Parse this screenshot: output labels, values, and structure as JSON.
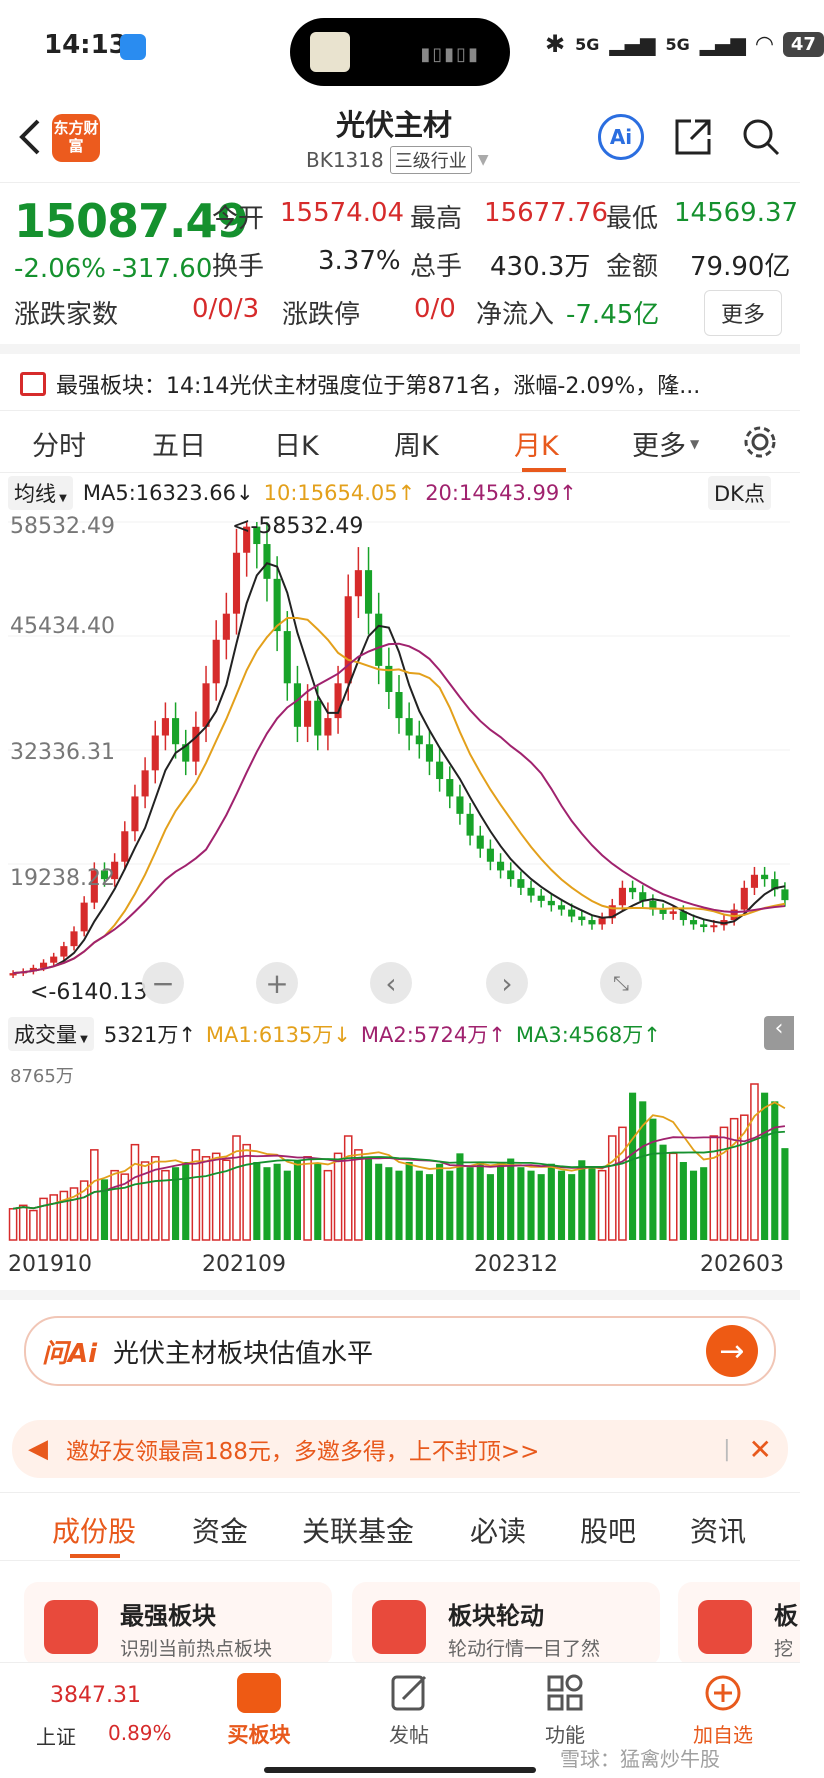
{
  "status_bar": {
    "time": "14:13",
    "network": "5G",
    "battery": "47"
  },
  "header": {
    "logo_text": "东方财富",
    "title": "光伏主材",
    "code": "BK1318",
    "category": "三级行业"
  },
  "quote": {
    "price": "15087.49",
    "change_pct": "-2.06%",
    "change_abs": "-317.60",
    "open_label": "今开",
    "open": "15574.04",
    "high_label": "最高",
    "high": "15677.76",
    "low_label": "最低",
    "low": "14569.37",
    "turnover_label": "换手",
    "turnover": "3.37%",
    "volume_label": "总手",
    "volume": "430.3万",
    "amount_label": "金额",
    "amount": "79.90亿",
    "updown_label": "涨跌家数",
    "updown": "0/0/3",
    "limit_label": "涨跌停",
    "limit": "0/0",
    "inflow_label": "净流入",
    "inflow": "-7.45亿",
    "more": "更多"
  },
  "notice": "最强板块：14:14光伏主材强度位于第871名，涨幅-2.09%，隆...",
  "tabs": {
    "t1": "分时",
    "t2": "五日",
    "t3": "日K",
    "t4": "周K",
    "t5": "月K",
    "t6": "更多",
    "active": "月K"
  },
  "indicators": {
    "type": "均线",
    "ma5": "MA5:16323.66↓",
    "ma10": "10:15654.05↑",
    "ma20": "20:14543.99↑",
    "dk": "DK点",
    "colors": {
      "ma5": "#222222",
      "ma10": "#e3a01b",
      "ma20": "#a0226e",
      "up": "#d62b2b",
      "down": "#18a329"
    }
  },
  "price_axis": {
    "y1": "58532.49",
    "y2": "45434.40",
    "y3": "32336.31",
    "y4": "19238.22",
    "max_marker": "<-58532.49",
    "min_marker": "<-6140.13"
  },
  "volume_header": {
    "label": "成交量",
    "value": "5321万↑",
    "ma1": "MA1:6135万↓",
    "ma2": "MA2:5724万↑",
    "ma3": "MA3:4568万↑",
    "axis_max": "8765万"
  },
  "x_axis": {
    "l1": "201910",
    "l2": "202109",
    "l3": "202312",
    "l4": "202603"
  },
  "ask": {
    "brand": "问Ai",
    "text": "光伏主材板块估值水平"
  },
  "banner": {
    "text": "邀好友领最高188元，多邀多得，上不封顶>>"
  },
  "section_tabs": {
    "s1": "成份股",
    "s2": "资金",
    "s3": "关联基金",
    "s4": "必读",
    "s5": "股吧",
    "s6": "资讯"
  },
  "cards": {
    "c1_title": "最强板块",
    "c1_sub": "识别当前热点板块",
    "c2_title": "板块轮动",
    "c2_sub": "轮动行情一目了然",
    "c3_title": "板",
    "c3_sub": "挖"
  },
  "bottom_nav": {
    "index_value": "3847.31",
    "index_name": "上证",
    "index_change": "0.89%",
    "buy": "买板块",
    "post": "发帖",
    "func": "功能",
    "watch": "加自选"
  },
  "watermark": "雪球：猛禽炒牛股",
  "chart_data": {
    "type": "candlestick",
    "period": "monthly",
    "x_ticks": [
      "201910",
      "202109",
      "202312",
      "202603"
    ],
    "y_ticks": [
      58532.49,
      45434.4,
      32336.31,
      19238.22
    ],
    "max_label": 58532.49,
    "min_label": 6140.13,
    "closes": [
      6700,
      6900,
      7300,
      7900,
      8600,
      9800,
      11500,
      14800,
      18500,
      17500,
      19500,
      23000,
      27000,
      30000,
      34000,
      36000,
      33000,
      31000,
      35000,
      40000,
      45000,
      48000,
      55000,
      58000,
      56000,
      52000,
      46000,
      40000,
      35000,
      38000,
      34000,
      36000,
      40000,
      50000,
      53000,
      48000,
      42000,
      39000,
      36000,
      34000,
      33000,
      31000,
      29000,
      27000,
      25000,
      22500,
      21000,
      19500,
      18500,
      17500,
      16500,
      15600,
      15000,
      14500,
      14000,
      13200,
      12800,
      12300,
      13000,
      14500,
      16500,
      16000,
      15000,
      14000,
      13500,
      13800,
      12800,
      12300,
      12000,
      12200,
      12800,
      14000,
      16500,
      18000,
      17500,
      16323,
      15087
    ],
    "ma5_last": 16323.66,
    "ma10_last": 15654.05,
    "ma20_last": 14543.99,
    "volumes": [
      18,
      20,
      17,
      24,
      26,
      28,
      30,
      34,
      52,
      35,
      40,
      38,
      55,
      45,
      48,
      40,
      42,
      45,
      52,
      48,
      50,
      46,
      60,
      55,
      45,
      42,
      44,
      40,
      46,
      48,
      44,
      40,
      50,
      60,
      52,
      47,
      44,
      42,
      40,
      45,
      40,
      38,
      44,
      40,
      50,
      42,
      45,
      38,
      44,
      47,
      42,
      40,
      38,
      44,
      40,
      38,
      46,
      42,
      40,
      60,
      65,
      85,
      80,
      70,
      55,
      50,
      45,
      40,
      42,
      60,
      65,
      70,
      72,
      90,
      85,
      80,
      53
    ]
  }
}
